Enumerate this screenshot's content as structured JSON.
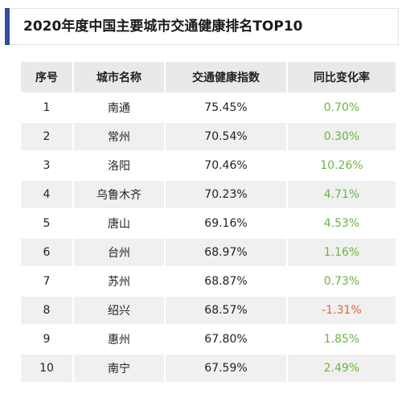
{
  "title": "2020年度中国主要城市交通健康排名TOP10",
  "colors": {
    "accent": "#2f4ea0",
    "positive": "#6db33f",
    "negative": "#e8603c",
    "header_bg": "#e9e9e9",
    "stripe_bg": "#f0f0f0"
  },
  "chart_data": {
    "type": "table",
    "title": "2020年度中国主要城市交通健康排名TOP10",
    "columns": [
      "序号",
      "城市名称",
      "交通健康指数",
      "同比变化率"
    ],
    "rows": [
      [
        "1",
        "南通",
        "75.45%",
        "0.70%"
      ],
      [
        "2",
        "常州",
        "70.54%",
        "0.30%"
      ],
      [
        "3",
        "洛阳",
        "70.46%",
        "10.26%"
      ],
      [
        "4",
        "乌鲁木齐",
        "70.23%",
        "4.71%"
      ],
      [
        "5",
        "唐山",
        "69.16%",
        "4.53%"
      ],
      [
        "6",
        "台州",
        "68.97%",
        "1.16%"
      ],
      [
        "7",
        "苏州",
        "68.87%",
        "0.73%"
      ],
      [
        "8",
        "绍兴",
        "68.57%",
        "-1.31%"
      ],
      [
        "9",
        "惠州",
        "67.80%",
        "1.85%"
      ],
      [
        "10",
        "南宁",
        "67.59%",
        "2.49%"
      ]
    ]
  }
}
